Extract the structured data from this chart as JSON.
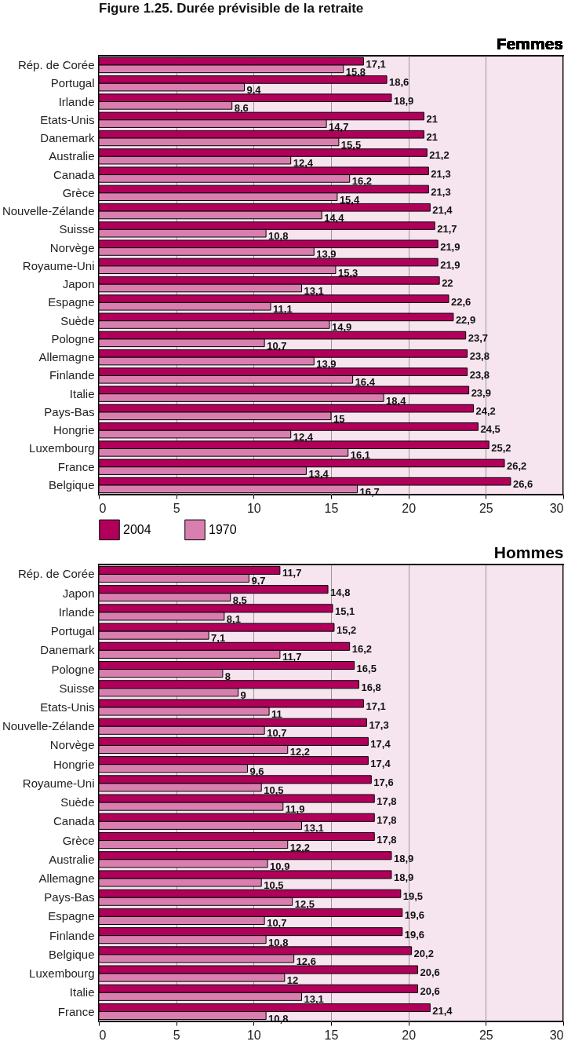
{
  "chart_data": [
    {
      "type": "bar",
      "orientation": "horizontal",
      "title": "Figure 1.25. Durée prévisible de la retraite",
      "subtitle": "Femmes",
      "categories": [
        "Rép. de Corée",
        "Portugal",
        "Irlande",
        "Etats-Unis",
        "Danemark",
        "Australie",
        "Canada",
        "Grèce",
        "Nouvelle-Zélande",
        "Suisse",
        "Norvège",
        "Royaume-Uni",
        "Japon",
        "Espagne",
        "Suède",
        "Pologne",
        "Allemagne",
        "Finlande",
        "Italie",
        "Pays-Bas",
        "Hongrie",
        "Luxembourg",
        "France",
        "Belgique"
      ],
      "series": [
        {
          "name": "2004",
          "color": "#b0005a",
          "values": [
            17.1,
            18.6,
            18.9,
            21,
            21,
            21.2,
            21.3,
            21.3,
            21.4,
            21.7,
            21.9,
            21.9,
            22,
            22.6,
            22.9,
            23.7,
            23.8,
            23.8,
            23.9,
            24.2,
            24.5,
            25.2,
            26.2,
            26.6
          ],
          "value_labels": [
            "17,1",
            "18,6",
            "18,9",
            "21",
            "21",
            "21,2",
            "21,3",
            "21,3",
            "21,4",
            "21,7",
            "21,9",
            "21,9",
            "22",
            "22,6",
            "22,9",
            "23,7",
            "23,8",
            "23,8",
            "23,9",
            "24,2",
            "24,5",
            "25,2",
            "26,2",
            "26,6"
          ]
        },
        {
          "name": "1970",
          "color": "#d97fb0",
          "values": [
            15.8,
            9.4,
            8.6,
            14.7,
            15.5,
            12.4,
            16.2,
            15.4,
            14.4,
            10.8,
            13.9,
            15.3,
            13.1,
            11.1,
            14.9,
            10.7,
            13.9,
            16.4,
            18.4,
            15,
            12.4,
            16.1,
            13.4,
            16.7
          ],
          "value_labels": [
            "15,8",
            "9,4",
            "8,6",
            "14,7",
            "15,5",
            "12,4",
            "16,2",
            "15,4",
            "14,4",
            "10,8",
            "13,9",
            "15,3",
            "13,1",
            "11,1",
            "14,9",
            "10,7",
            "13,9",
            "16,4",
            "18,4",
            "15",
            "12,4",
            "16,1",
            "13,4",
            "16,7"
          ]
        }
      ],
      "xlim": [
        0,
        30
      ],
      "xticks": [
        0,
        5,
        10,
        15,
        20,
        25,
        30
      ],
      "grid": "x",
      "legend": "bottom"
    },
    {
      "type": "bar",
      "orientation": "horizontal",
      "title": "Hommes",
      "categories": [
        "Rép. de Corée",
        "Japon",
        "Irlande",
        "Portugal",
        "Danemark",
        "Pologne",
        "Suisse",
        "Etats-Unis",
        "Nouvelle-Zélande",
        "Norvège",
        "Hongrie",
        "Royaume-Uni",
        "Suède",
        "Canada",
        "Grèce",
        "Australie",
        "Allemagne",
        "Pays-Bas",
        "Espagne",
        "Finlande",
        "Belgique",
        "Luxembourg",
        "Italie",
        "France"
      ],
      "series": [
        {
          "name": "2004",
          "color": "#b0005a",
          "values": [
            11.7,
            14.8,
            15.1,
            15.2,
            16.2,
            16.5,
            16.8,
            17.1,
            17.3,
            17.4,
            17.4,
            17.6,
            17.8,
            17.8,
            17.8,
            18.9,
            18.9,
            19.5,
            19.6,
            19.6,
            20.2,
            20.6,
            20.6,
            21.4
          ],
          "value_labels": [
            "11,7",
            "14,8",
            "15,1",
            "15,2",
            "16,2",
            "16,5",
            "16,8",
            "17,1",
            "17,3",
            "17,4",
            "17,4",
            "17,6",
            "17,8",
            "17,8",
            "17,8",
            "18,9",
            "18,9",
            "19,5",
            "19,6",
            "19,6",
            "20,2",
            "20,6",
            "20,6",
            "21,4"
          ]
        },
        {
          "name": "1970",
          "color": "#d97fb0",
          "values": [
            9.7,
            8.5,
            8.1,
            7.1,
            11.7,
            8,
            9,
            11,
            10.7,
            12.2,
            9.6,
            10.5,
            11.9,
            13.1,
            12.2,
            10.9,
            10.5,
            12.5,
            10.7,
            10.8,
            12.6,
            12,
            13.1,
            10.8
          ],
          "value_labels": [
            "9,7",
            "8,5",
            "8,1",
            "7,1",
            "11,7",
            "8",
            "9",
            "11",
            "10,7",
            "12,2",
            "9,6",
            "10,5",
            "11,9",
            "13,1",
            "12,2",
            "10,9",
            "10,5",
            "12,5",
            "10,7",
            "10,8",
            "12,6",
            "12",
            "13,1",
            "10,8"
          ]
        }
      ],
      "xlim": [
        0,
        30
      ],
      "xticks": [
        0,
        5,
        10,
        15,
        20,
        25,
        30
      ],
      "grid": "x"
    }
  ]
}
